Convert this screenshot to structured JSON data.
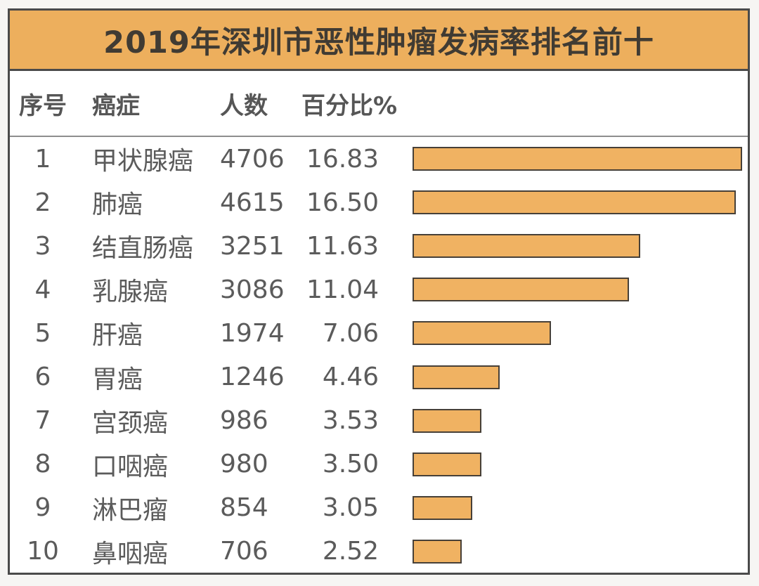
{
  "title": "2019年深圳市恶性肿瘤发病率排名前十",
  "table": {
    "headers": [
      "序号",
      "癌症",
      "人数",
      "百分比%"
    ],
    "rows": [
      {
        "rank": "1",
        "cancer": "甲状腺癌",
        "count": "4706",
        "percent": "16.83"
      },
      {
        "rank": "2",
        "cancer": "肺癌",
        "count": "4615",
        "percent": "16.50"
      },
      {
        "rank": "3",
        "cancer": "结直肠癌",
        "count": "3251",
        "percent": "11.63"
      },
      {
        "rank": "4",
        "cancer": "乳腺癌",
        "count": "3086",
        "percent": "11.04"
      },
      {
        "rank": "5",
        "cancer": "肝癌",
        "count": "1974",
        "percent": "7.06"
      },
      {
        "rank": "6",
        "cancer": "胃癌",
        "count": "1246",
        "percent": "4.46"
      },
      {
        "rank": "7",
        "cancer": "宫颈癌",
        "count": "986",
        "percent": "3.53"
      },
      {
        "rank": "8",
        "cancer": "口咽癌",
        "count": "980",
        "percent": "3.50"
      },
      {
        "rank": "9",
        "cancer": "淋巴瘤",
        "count": "854",
        "percent": "3.05"
      },
      {
        "rank": "10",
        "cancer": "鼻咽癌",
        "count": "706",
        "percent": "2.52"
      }
    ]
  },
  "chart_data": {
    "type": "bar",
    "orientation": "horizontal",
    "title": "2019年深圳市恶性肿瘤发病率排名前十",
    "categories": [
      "甲状腺癌",
      "肺癌",
      "结直肠癌",
      "乳腺癌",
      "肝癌",
      "胃癌",
      "宫颈癌",
      "口咽癌",
      "淋巴瘤",
      "鼻咽癌"
    ],
    "series": [
      {
        "name": "人数",
        "values": [
          4706,
          4615,
          3251,
          3086,
          1974,
          1246,
          986,
          980,
          854,
          706
        ]
      },
      {
        "name": "百分比%",
        "values": [
          16.83,
          16.5,
          11.63,
          11.04,
          7.06,
          4.46,
          3.53,
          3.5,
          3.05,
          2.52
        ]
      }
    ],
    "value_axis_range": [
      0,
      16.83
    ],
    "grid": false,
    "legend_position": "none",
    "bars_aligned_left": true
  },
  "colors": {
    "accent_orange": "#EDAF5D",
    "bar_fill": "#F0B262",
    "bar_border": "#474038",
    "frame_border": "#4A4A4A",
    "header_text": "#565656",
    "body_text": "#5B5B5B",
    "title_text": "#403B33"
  }
}
